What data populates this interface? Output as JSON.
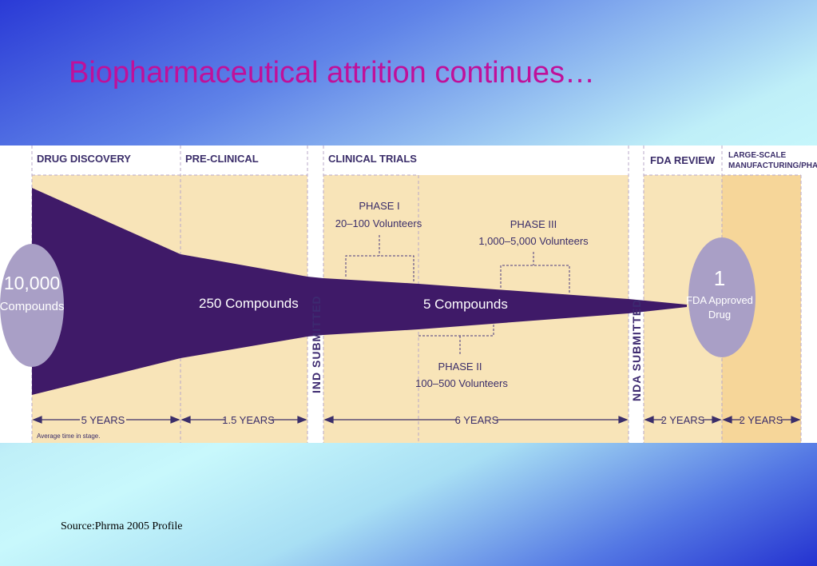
{
  "title": "Biopharmaceutical attrition continues…",
  "stages": {
    "drug_discovery": "DRUG DISCOVERY",
    "pre_clinical": "PRE-CLINICAL",
    "clinical_trials": "CLINICAL TRIALS",
    "fda_review": "FDA REVIEW",
    "manufacturing_line1": "LARGE-SCALE",
    "manufacturing_line2": "MANUFACTURING/PHASE IV"
  },
  "milestones": {
    "ind": "IND SUBMITTED",
    "nda": "NDA SUBMITTED"
  },
  "counts": {
    "start_number": "10,000",
    "start_unit": "Compounds",
    "preclinical": "250 Compounds",
    "clinical": "5 Compounds",
    "end_number": "1",
    "end_line1": "FDA Approved",
    "end_line2": "Drug"
  },
  "phases": {
    "phase1_name": "PHASE I",
    "phase1_volunteers": "20–100 Volunteers",
    "phase2_name": "PHASE II",
    "phase2_volunteers": "100–500 Volunteers",
    "phase3_name": "PHASE III",
    "phase3_volunteers": "1,000–5,000 Volunteers"
  },
  "durations": {
    "discovery": "5 YEARS",
    "preclinical": "1.5 YEARS",
    "clinical": "6 YEARS",
    "fda_review": "2 YEARS",
    "manufacturing": "2 YEARS",
    "note": "Average time in stage."
  },
  "source": "Source:Phrma 2005 Profile",
  "colors": {
    "title": "#c0109a",
    "funnel": "#3f1a68",
    "stage_fill": "#f8e4b8",
    "manufacturing_fill": "#f6d699",
    "circle": "#a99fc6"
  }
}
